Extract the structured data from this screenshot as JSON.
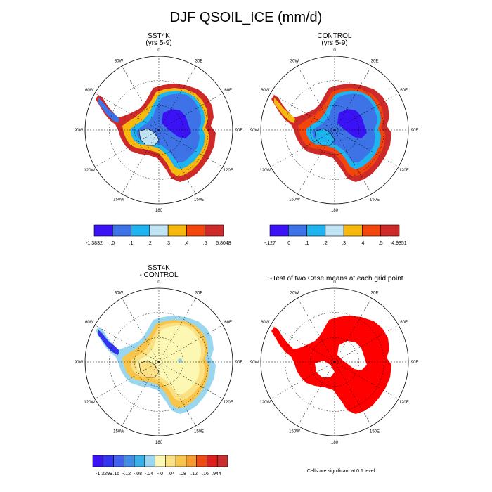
{
  "title": "DJF QSOIL_ICE (mm/d)",
  "panels": [
    {
      "id": "sst4k",
      "title_line1": "SST4K",
      "title_line2": "(yrs 5-9)"
    },
    {
      "id": "control",
      "title_line1": "CONTROL",
      "title_line2": "(yrs 5-9)"
    },
    {
      "id": "diff",
      "title_line1": "SST4K",
      "title_line2": "- CONTROL"
    },
    {
      "id": "ttest",
      "title_line1": "T-Test of two Case means at each grid point",
      "title_line2": ""
    }
  ],
  "longitude_labels": [
    "0",
    "30E",
    "60E",
    "90E",
    "120E",
    "150E",
    "180",
    "150W",
    "120W",
    "90W",
    "60W",
    "30W"
  ],
  "colorbars": {
    "sst4k": {
      "labels": [
        "-1.3832",
        ".0",
        ".1",
        ".2",
        ".3",
        ".4",
        ".5",
        "5.8048"
      ],
      "colors": [
        "#3a12f5",
        "#3d73e6",
        "#1fb4f0",
        "#bfe3f2",
        "#f7b90f",
        "#f2460c",
        "#cf2a2a"
      ]
    },
    "control": {
      "labels": [
        "-.127",
        ".0",
        ".1",
        ".2",
        ".3",
        ".4",
        ".5",
        "4.9351"
      ],
      "colors": [
        "#3a12f5",
        "#3d73e6",
        "#1fb4f0",
        "#bfe3f2",
        "#f7b90f",
        "#f2460c",
        "#cf2a2a"
      ]
    },
    "diff": {
      "labels": [
        "-1.3299",
        "-.16",
        "-.12",
        "-.08",
        "-.04",
        "-.0",
        ".04",
        ".08",
        ".12",
        ".16",
        ".944"
      ],
      "colors": [
        "#3a12f5",
        "#3333f0",
        "#4062ec",
        "#3f8fe8",
        "#38b1e9",
        "#9ad7ef",
        "#fcf7b2",
        "#fbe083",
        "#f8c54a",
        "#f69a2d",
        "#f04a16",
        "#e01e1e",
        "#c83030"
      ]
    }
  },
  "ttest_fill_color": "#ff0000",
  "significance_note": "Cells are significant at 0.1 level"
}
